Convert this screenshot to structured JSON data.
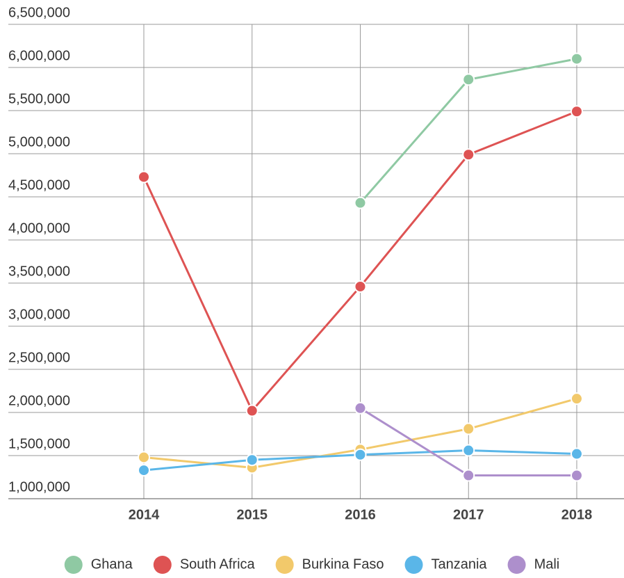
{
  "chart_data": {
    "type": "line",
    "categories": [
      "2014",
      "2015",
      "2016",
      "2017",
      "2018"
    ],
    "series": [
      {
        "name": "Ghana",
        "color": "#8fc9a3",
        "values": [
          null,
          null,
          4430000,
          5860000,
          6100000
        ]
      },
      {
        "name": "South Africa",
        "color": "#de5353",
        "values": [
          4730000,
          2020000,
          3460000,
          4990000,
          5490000
        ]
      },
      {
        "name": "Burkina Faso",
        "color": "#f2c96b",
        "values": [
          1480000,
          1360000,
          1570000,
          1810000,
          2160000
        ]
      },
      {
        "name": "Tanzania",
        "color": "#5ab6e8",
        "values": [
          1330000,
          1450000,
          1510000,
          1560000,
          1520000
        ]
      },
      {
        "name": "Mali",
        "color": "#ad8fcc",
        "values": [
          null,
          null,
          2050000,
          1270000,
          1270000
        ]
      }
    ],
    "ylim": [
      1000000,
      6500000
    ],
    "yticks": [
      {
        "value": 1000000,
        "label": "1,000,000"
      },
      {
        "value": 1500000,
        "label": "1,500,000"
      },
      {
        "value": 2000000,
        "label": "2,000,000"
      },
      {
        "value": 2500000,
        "label": "2,500,000"
      },
      {
        "value": 3000000,
        "label": "3,000,000"
      },
      {
        "value": 3500000,
        "label": "3,500,000"
      },
      {
        "value": 4000000,
        "label": "4,000,000"
      },
      {
        "value": 4500000,
        "label": "4,500,000"
      },
      {
        "value": 5000000,
        "label": "5,000,000"
      },
      {
        "value": 5500000,
        "label": "5,500,000"
      },
      {
        "value": 6000000,
        "label": "6,000,000"
      },
      {
        "value": 6500000,
        "label": "6,500,000"
      }
    ],
    "grid": true,
    "legend": "bottom"
  }
}
